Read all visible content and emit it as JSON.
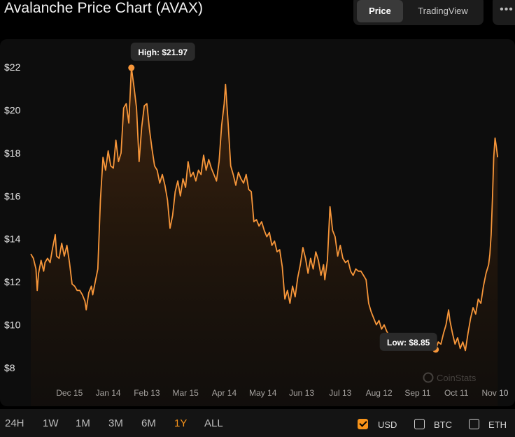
{
  "header": {
    "title": "Avalanche Price Chart (AVAX)",
    "tabs": [
      {
        "label": "Price",
        "active": true
      },
      {
        "label": "TradingView",
        "active": false
      }
    ],
    "more_icon": "more-dots-icon"
  },
  "chart_data": {
    "type": "area",
    "title": "",
    "y_ticks": [
      "$22",
      "$20",
      "$18",
      "$16",
      "$14",
      "$12",
      "$10",
      "$8"
    ],
    "y_tick_values": [
      22,
      20,
      18,
      16,
      14,
      12,
      10,
      8
    ],
    "x_ticks": [
      "Dec 15",
      "Jan 14",
      "Feb 13",
      "Mar 15",
      "Apr 14",
      "May 14",
      "Jun 13",
      "Jul 13",
      "Aug 12",
      "Sep 11",
      "Oct 11",
      "Nov 10"
    ],
    "x_tick_days": [
      30,
      60,
      90,
      120,
      150,
      180,
      210,
      240,
      270,
      300,
      330,
      360
    ],
    "ylim": [
      7.6,
      22.4
    ],
    "xlim": [
      0,
      363
    ],
    "high_label": "High: $21.97",
    "low_label": "Low: $8.85",
    "high": {
      "day": 78,
      "value": 21.97
    },
    "low": {
      "day": 314,
      "value": 8.85
    },
    "watermark": "CoinStats",
    "line_color": "#f7963a",
    "series": [
      {
        "points": [
          [
            0,
            13.3
          ],
          [
            2,
            13.1
          ],
          [
            4,
            12.6
          ],
          [
            5,
            11.6
          ],
          [
            6,
            12.4
          ],
          [
            8,
            13.0
          ],
          [
            10,
            12.5
          ],
          [
            11,
            12.9
          ],
          [
            13,
            13.1
          ],
          [
            15,
            12.9
          ],
          [
            17,
            13.6
          ],
          [
            19,
            14.2
          ],
          [
            20,
            13.2
          ],
          [
            22,
            13.1
          ],
          [
            24,
            13.8
          ],
          [
            26,
            13.2
          ],
          [
            28,
            13.7
          ],
          [
            30,
            12.9
          ],
          [
            32,
            11.9
          ],
          [
            34,
            11.8
          ],
          [
            36,
            11.6
          ],
          [
            38,
            11.6
          ],
          [
            40,
            11.4
          ],
          [
            42,
            11.1
          ],
          [
            43,
            10.7
          ],
          [
            45,
            11.5
          ],
          [
            47,
            11.8
          ],
          [
            48,
            11.4
          ],
          [
            50,
            12.0
          ],
          [
            52,
            12.6
          ],
          [
            54,
            15.8
          ],
          [
            56,
            17.8
          ],
          [
            58,
            17.2
          ],
          [
            60,
            18.1
          ],
          [
            62,
            17.4
          ],
          [
            64,
            17.3
          ],
          [
            66,
            18.6
          ],
          [
            68,
            17.6
          ],
          [
            70,
            18.0
          ],
          [
            72,
            20.1
          ],
          [
            74,
            20.3
          ],
          [
            76,
            19.4
          ],
          [
            78,
            21.97
          ],
          [
            80,
            21.1
          ],
          [
            82,
            20.1
          ],
          [
            84,
            17.6
          ],
          [
            86,
            19.2
          ],
          [
            88,
            20.2
          ],
          [
            90,
            20.3
          ],
          [
            92,
            19.1
          ],
          [
            94,
            18.2
          ],
          [
            96,
            17.4
          ],
          [
            98,
            17.2
          ],
          [
            100,
            16.6
          ],
          [
            102,
            17.0
          ],
          [
            104,
            16.5
          ],
          [
            106,
            15.8
          ],
          [
            108,
            14.5
          ],
          [
            110,
            15.1
          ],
          [
            112,
            16.2
          ],
          [
            114,
            16.7
          ],
          [
            116,
            16.0
          ],
          [
            118,
            16.8
          ],
          [
            120,
            16.4
          ],
          [
            122,
            17.6
          ],
          [
            124,
            16.9
          ],
          [
            126,
            17.1
          ],
          [
            128,
            16.7
          ],
          [
            130,
            17.2
          ],
          [
            132,
            17.0
          ],
          [
            134,
            17.9
          ],
          [
            136,
            17.2
          ],
          [
            138,
            17.7
          ],
          [
            140,
            17.3
          ],
          [
            142,
            17.0
          ],
          [
            144,
            16.7
          ],
          [
            146,
            17.6
          ],
          [
            148,
            19.3
          ],
          [
            150,
            20.3
          ],
          [
            151,
            21.2
          ],
          [
            153,
            19.4
          ],
          [
            155,
            17.4
          ],
          [
            157,
            17.0
          ],
          [
            159,
            16.5
          ],
          [
            161,
            17.1
          ],
          [
            163,
            16.8
          ],
          [
            165,
            16.6
          ],
          [
            167,
            17.0
          ],
          [
            169,
            16.3
          ],
          [
            171,
            16.2
          ],
          [
            173,
            14.8
          ],
          [
            175,
            14.9
          ],
          [
            177,
            14.6
          ],
          [
            179,
            14.8
          ],
          [
            181,
            14.4
          ],
          [
            183,
            14.1
          ],
          [
            185,
            14.3
          ],
          [
            187,
            13.7
          ],
          [
            189,
            13.9
          ],
          [
            191,
            13.4
          ],
          [
            193,
            13.5
          ],
          [
            195,
            12.7
          ],
          [
            197,
            11.2
          ],
          [
            199,
            11.6
          ],
          [
            201,
            11.0
          ],
          [
            203,
            11.8
          ],
          [
            205,
            11.3
          ],
          [
            207,
            12.2
          ],
          [
            209,
            12.8
          ],
          [
            211,
            13.6
          ],
          [
            213,
            13.1
          ],
          [
            215,
            12.4
          ],
          [
            217,
            13.1
          ],
          [
            219,
            12.6
          ],
          [
            221,
            13.4
          ],
          [
            223,
            13.0
          ],
          [
            225,
            12.3
          ],
          [
            227,
            12.8
          ],
          [
            228,
            12.1
          ],
          [
            230,
            13.0
          ],
          [
            232,
            15.5
          ],
          [
            234,
            14.4
          ],
          [
            236,
            14.1
          ],
          [
            238,
            13.2
          ],
          [
            240,
            13.7
          ],
          [
            242,
            13.1
          ],
          [
            244,
            12.9
          ],
          [
            246,
            13.0
          ],
          [
            248,
            12.5
          ],
          [
            250,
            12.3
          ],
          [
            252,
            12.6
          ],
          [
            254,
            12.5
          ],
          [
            256,
            12.5
          ],
          [
            258,
            12.3
          ],
          [
            260,
            12.1
          ],
          [
            262,
            11.0
          ],
          [
            264,
            10.6
          ],
          [
            266,
            10.3
          ],
          [
            268,
            10.0
          ],
          [
            270,
            10.2
          ],
          [
            272,
            9.8
          ],
          [
            274,
            10.0
          ],
          [
            276,
            9.7
          ],
          [
            278,
            9.5
          ],
          [
            280,
            9.6
          ],
          [
            282,
            9.5
          ],
          [
            284,
            9.4
          ],
          [
            286,
            9.3
          ],
          [
            288,
            9.2
          ],
          [
            290,
            9.1
          ],
          [
            292,
            9.0
          ],
          [
            294,
            8.95
          ],
          [
            296,
            8.9
          ],
          [
            298,
            8.88
          ],
          [
            300,
            8.87
          ],
          [
            302,
            8.86
          ],
          [
            304,
            8.86
          ],
          [
            306,
            8.85
          ],
          [
            308,
            8.86
          ],
          [
            310,
            8.85
          ],
          [
            312,
            8.87
          ],
          [
            314,
            8.85
          ],
          [
            316,
            9.2
          ],
          [
            318,
            9.1
          ],
          [
            320,
            9.6
          ],
          [
            322,
            10.0
          ],
          [
            324,
            10.7
          ],
          [
            325,
            10.2
          ],
          [
            327,
            9.6
          ],
          [
            329,
            9.1
          ],
          [
            331,
            9.4
          ],
          [
            333,
            8.9
          ],
          [
            335,
            9.2
          ],
          [
            337,
            8.8
          ],
          [
            339,
            9.6
          ],
          [
            341,
            10.3
          ],
          [
            343,
            10.8
          ],
          [
            345,
            10.5
          ],
          [
            347,
            11.2
          ],
          [
            349,
            11.0
          ],
          [
            351,
            11.8
          ],
          [
            353,
            12.4
          ],
          [
            355,
            12.8
          ],
          [
            356,
            13.3
          ],
          [
            357,
            14.2
          ],
          [
            358,
            15.9
          ],
          [
            359,
            17.8
          ],
          [
            360,
            18.7
          ],
          [
            361,
            18.3
          ],
          [
            362,
            17.8
          ]
        ]
      }
    ]
  },
  "range_buttons": [
    {
      "label": "24H",
      "active": false
    },
    {
      "label": "1W",
      "active": false
    },
    {
      "label": "1M",
      "active": false
    },
    {
      "label": "3M",
      "active": false
    },
    {
      "label": "6M",
      "active": false
    },
    {
      "label": "1Y",
      "active": true
    },
    {
      "label": "ALL",
      "active": false
    }
  ],
  "currencies": [
    {
      "label": "USD",
      "checked": true
    },
    {
      "label": "BTC",
      "checked": false
    },
    {
      "label": "ETH",
      "checked": false
    }
  ]
}
